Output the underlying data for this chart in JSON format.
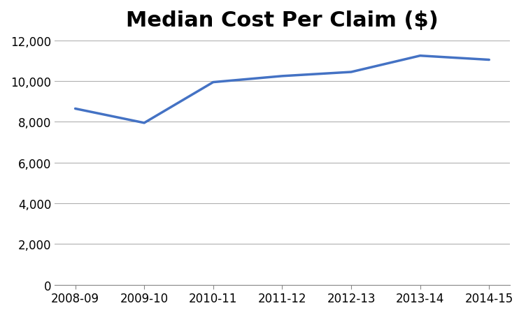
{
  "title": "Median Cost Per Claim ($)",
  "categories": [
    "2008-09",
    "2009-10",
    "2010-11",
    "2011-12",
    "2012-13",
    "2013-14",
    "2014-15"
  ],
  "values": [
    8650,
    7950,
    9950,
    10250,
    10450,
    11250,
    11050
  ],
  "line_color": "#4472C4",
  "line_width": 2.5,
  "ylim": [
    0,
    12000
  ],
  "ytick_step": 2000,
  "title_fontsize": 22,
  "tick_fontsize": 12,
  "background_color": "#ffffff",
  "grid_color": "#b0b0b0",
  "grid_linestyle": "-",
  "grid_linewidth": 0.8
}
